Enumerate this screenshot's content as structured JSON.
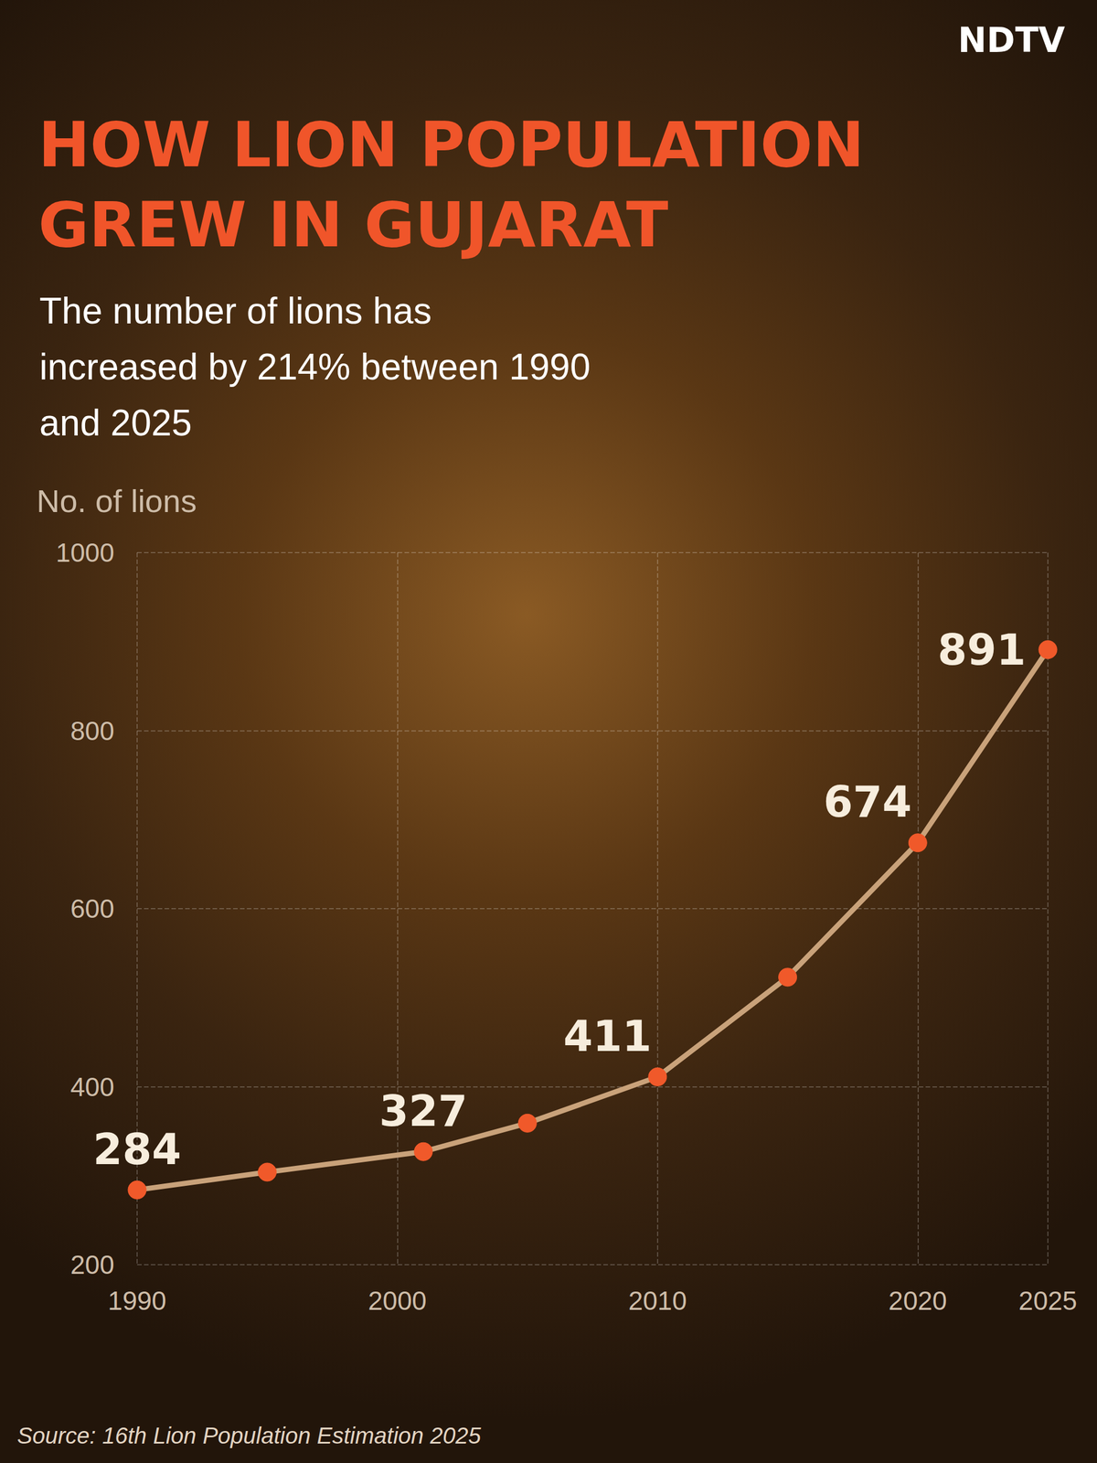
{
  "chart_data": {
    "type": "line",
    "title": "HOW LION POPULATION GREW IN GUJARAT",
    "subtitle": "The number of lions has increased by 214% between 1990 and 2025",
    "ylabel": "No. of lions",
    "source": "Source: 16th Lion Population Estimation 2025",
    "brand": "NDTV",
    "x": [
      1990,
      1995,
      2001,
      2005,
      2010,
      2015,
      2020,
      2025
    ],
    "values": [
      284,
      304,
      327,
      359,
      411,
      523,
      674,
      891
    ],
    "value_labels": [
      "284",
      null,
      "327",
      null,
      "411",
      null,
      "674",
      "891"
    ],
    "data_labels": true,
    "color": "#c9a27a",
    "marker": "circle",
    "xlim": [
      1990,
      2025
    ],
    "xticks": [
      1990,
      2000,
      2010,
      2020,
      2025
    ],
    "ylim": [
      200,
      1000
    ],
    "yticks": [
      200,
      400,
      600,
      800,
      1000
    ],
    "grid": true
  }
}
